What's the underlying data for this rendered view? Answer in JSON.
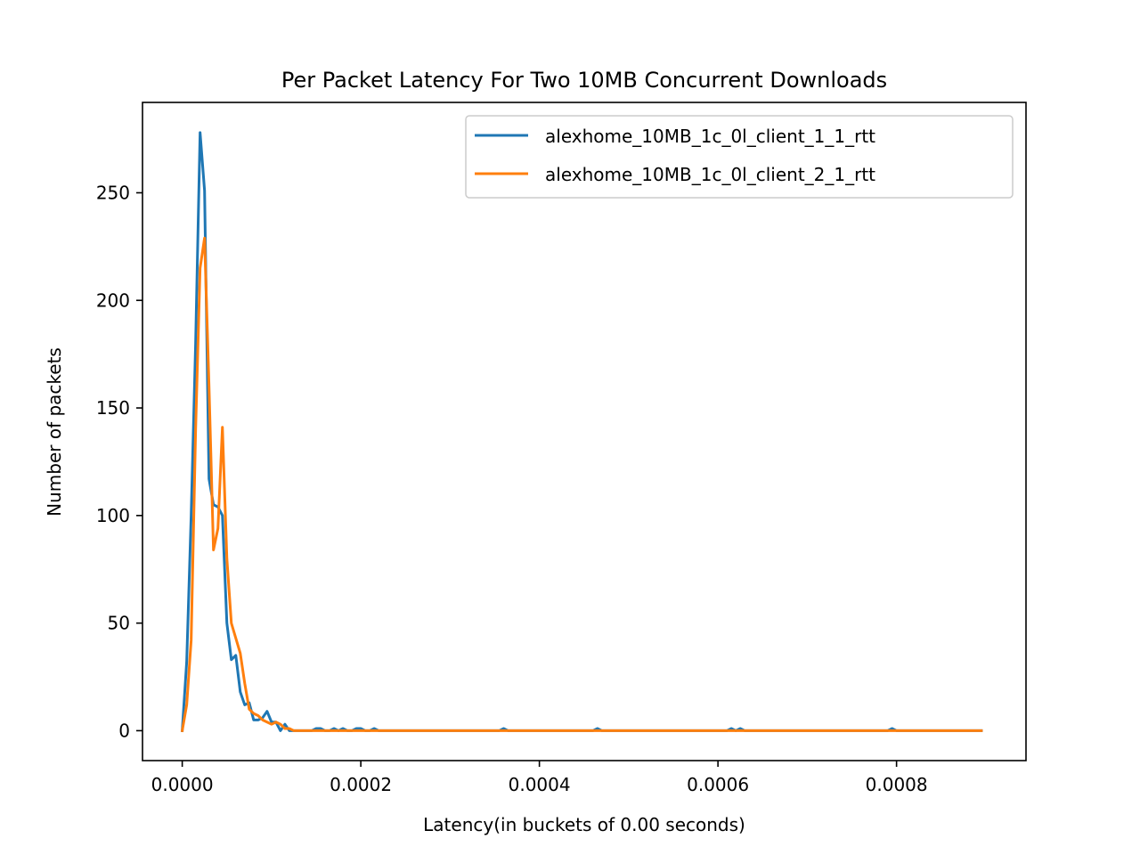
{
  "chart_data": {
    "type": "line",
    "title": "Per Packet Latency For Two 10MB Concurrent Downloads",
    "xlabel": "Latency(in buckets of 0.00 seconds)",
    "ylabel": "Number of packets",
    "xlim": [
      -4.45e-05,
      0.000945
    ],
    "ylim": [
      -13.9,
      292
    ],
    "xticks": [
      0.0,
      0.0002,
      0.0004,
      0.0006,
      0.0008
    ],
    "xtick_labels": [
      "0.0000",
      "0.0002",
      "0.0004",
      "0.0006",
      "0.0008"
    ],
    "yticks": [
      0,
      50,
      100,
      150,
      200,
      250
    ],
    "ytick_labels": [
      "0",
      "50",
      "100",
      "150",
      "200",
      "250"
    ],
    "grid": false,
    "legend_position": "top-right",
    "colors": {
      "series1": "#1f77b4",
      "series2": "#ff7f0e"
    },
    "series": [
      {
        "name": "alexhome_10MB_1c_0l_client_1_1_rtt",
        "x": [
          0.0,
          5e-06,
          1e-05,
          1.5e-05,
          2e-05,
          2.5e-05,
          3e-05,
          3.5e-05,
          4e-05,
          4.5e-05,
          5e-05,
          5.5e-05,
          6e-05,
          6.5e-05,
          7e-05,
          7.5e-05,
          8e-05,
          8.5e-05,
          9e-05,
          9.5e-05,
          0.0001,
          0.000105,
          0.00011,
          0.000115,
          0.00012,
          0.000125,
          0.00013,
          0.000135,
          0.00014,
          0.000145,
          0.00015,
          0.000155,
          0.00016,
          0.000165,
          0.00017,
          0.000175,
          0.00018,
          0.000185,
          0.00019,
          0.000195,
          0.0002,
          0.000205,
          0.00021,
          0.000215,
          0.00022,
          0.000225,
          0.00023,
          0.00035,
          0.000355,
          0.00036,
          0.000365,
          0.00037,
          0.000455,
          0.00046,
          0.000465,
          0.00047,
          0.000475,
          0.000605,
          0.00061,
          0.000615,
          0.00062,
          0.000625,
          0.00063,
          0.000785,
          0.00079,
          0.000795,
          0.0008,
          0.000805,
          0.000895
        ],
        "y": [
          0,
          32,
          100,
          180,
          278,
          251,
          117,
          105,
          104,
          100,
          50,
          33,
          35,
          18,
          12,
          13,
          5,
          5,
          6,
          9,
          4,
          4,
          0,
          3,
          0,
          0,
          0,
          0,
          0,
          0,
          1,
          1,
          0,
          0,
          1,
          0,
          1,
          0,
          0,
          1,
          1,
          0,
          0,
          1,
          0,
          0,
          0,
          0,
          0,
          1,
          0,
          0,
          0,
          0,
          1,
          0,
          0,
          0,
          0,
          1,
          0,
          1,
          0,
          0,
          0,
          1,
          0,
          0,
          0
        ]
      },
      {
        "name": "alexhome_10MB_1c_0l_client_2_1_rtt",
        "x": [
          0.0,
          5e-06,
          1e-05,
          1.5e-05,
          2e-05,
          2.5e-05,
          3e-05,
          3.5e-05,
          4e-05,
          4.5e-05,
          5e-05,
          5.5e-05,
          6e-05,
          6.5e-05,
          7e-05,
          7.5e-05,
          8e-05,
          8.5e-05,
          9e-05,
          9.5e-05,
          0.0001,
          0.000105,
          0.00011,
          0.000115,
          0.00012,
          0.000125,
          0.00013,
          0.000135,
          0.00014,
          0.000145,
          0.00015,
          0.000155,
          0.00016,
          0.000165,
          0.00017,
          0.000175,
          0.00018,
          0.000185,
          0.00019,
          0.000195,
          0.0002,
          0.000205,
          0.00021,
          0.000215,
          0.00022,
          0.000225,
          0.00023,
          0.000895
        ],
        "y": [
          0,
          12,
          42,
          140,
          215,
          229,
          160,
          84,
          94,
          141,
          80,
          50,
          43,
          36,
          22,
          10,
          8,
          7,
          5,
          4,
          3,
          4,
          3,
          1,
          1,
          0,
          0,
          0,
          0,
          0,
          0,
          0,
          0,
          0,
          0,
          0,
          0,
          0,
          0,
          0,
          0,
          0,
          0,
          0,
          0,
          0,
          0,
          0
        ]
      }
    ]
  }
}
